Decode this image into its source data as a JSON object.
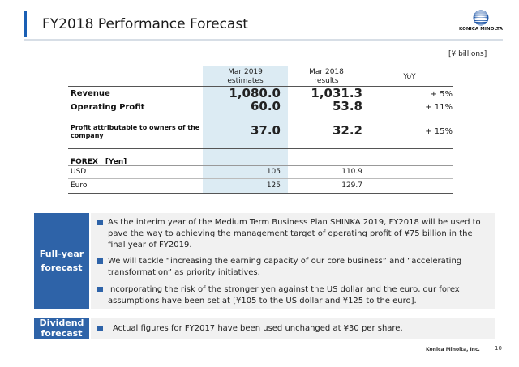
{
  "slide": {
    "title": "FY2018 Performance Forecast",
    "logo_text": "KONICA MINOLTA",
    "footer_company": "Konica Minolta, Inc.",
    "page_number": "10",
    "accent_color": "#2e63a8",
    "estimate_column_color": "#dcebf3"
  },
  "table": {
    "unit": "[¥ billions]",
    "headers": {
      "estimates": [
        "Mar 2019",
        "estimates"
      ],
      "results": [
        "Mar 2018",
        "results"
      ],
      "yoy": "YoY"
    },
    "rows": [
      {
        "label": "Revenue",
        "estimate": "1,080.0",
        "result": "1,031.3",
        "yoy": "+ 5%"
      },
      {
        "label": "Operating Profit",
        "estimate": "60.0",
        "result": "53.8",
        "yoy": "+ 11%"
      },
      {
        "label": "Profit attributable to owners of the company",
        "estimate": "37.0",
        "result": "32.2",
        "yoy": "+ 15%"
      }
    ],
    "forex": {
      "heading": "FOREX　[Yen]",
      "rows": [
        {
          "label": "USD",
          "estimate": "105",
          "result": "110.9"
        },
        {
          "label": "Euro",
          "estimate": "125",
          "result": "129.7"
        }
      ]
    }
  },
  "panels": {
    "full_year": {
      "tag": [
        "Full-year",
        "forecast"
      ],
      "bullets": [
        "As the interim year of the Medium Term Business Plan SHINKA 2019, FY2018 will be used to pave the way to achieving the management target of operating profit of ¥75 billion in the final year of FY2019.",
        "We will tackle “increasing the earning capacity of our core business” and “accelerating transformation” as priority initiatives.",
        "Incorporating the risk of the stronger yen against the US dollar and the euro, our forex assumptions have been set at [¥105 to the US dollar and ¥125 to the euro]."
      ]
    },
    "dividend": {
      "tag": [
        "Dividend",
        "forecast"
      ],
      "bullets": [
        "Actual figures for FY2017 have been used unchanged at ¥30 per share."
      ]
    }
  }
}
